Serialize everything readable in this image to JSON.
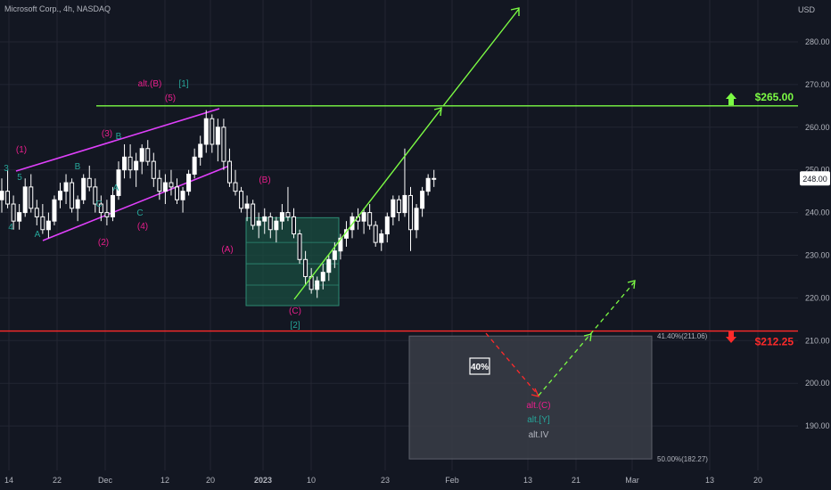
{
  "header": {
    "title": "Microsoft Corp., 4h, NASDAQ",
    "currency": "USD"
  },
  "colors": {
    "background": "#131722",
    "grid": "#232632",
    "text": "#b2b5be",
    "candle": "#ffffff",
    "channel": "#e040fb",
    "wave_pink": "#e91e8c",
    "wave_teal": "#26a69a",
    "target_green": "#7cfc44",
    "support_red": "#ff2a2a",
    "zone_teal": "#1a4d40",
    "alt_zone": "#3a3d47"
  },
  "chart_data": {
    "type": "candlestick",
    "title": "Microsoft Corp., 4h, NASDAQ",
    "ylabel": "USD",
    "y_axis_side": "right",
    "ylim": [
      182,
      298
    ],
    "y_ticks": [
      190,
      200,
      210,
      220,
      230,
      240,
      250,
      260,
      270,
      280
    ],
    "y_tick_labels": [
      "190.00",
      "200.00",
      "210.00",
      "220.00",
      "230.00",
      "240.00",
      "250.00",
      "260.00",
      "270.00",
      "280.00"
    ],
    "x_tick_labels": [
      "14",
      "22",
      "Dec",
      "12",
      "20",
      "2023",
      "10",
      "23",
      "Feb",
      "13",
      "21",
      "Mar",
      "13",
      "20"
    ],
    "grid": true,
    "last_price": 248.0,
    "last_price_label": "248.00",
    "ohlc": [
      [
        243,
        248,
        240,
        245
      ],
      [
        245,
        250,
        241,
        242
      ],
      [
        242,
        244,
        236,
        238
      ],
      [
        238,
        242,
        236,
        240
      ],
      [
        240,
        248,
        239,
        246
      ],
      [
        246,
        249,
        240,
        241
      ],
      [
        241,
        243,
        237,
        239
      ],
      [
        239,
        242,
        235,
        236
      ],
      [
        236,
        240,
        234,
        238
      ],
      [
        238,
        244,
        237,
        243
      ],
      [
        243,
        247,
        241,
        245
      ],
      [
        245,
        249,
        242,
        247
      ],
      [
        247,
        248,
        240,
        241
      ],
      [
        241,
        244,
        238,
        243
      ],
      [
        243,
        249,
        242,
        248
      ],
      [
        248,
        251,
        245,
        246
      ],
      [
        246,
        248,
        240,
        242
      ],
      [
        242,
        244,
        238,
        240
      ],
      [
        240,
        243,
        237,
        239
      ],
      [
        239,
        246,
        238,
        244
      ],
      [
        244,
        252,
        243,
        250
      ],
      [
        250,
        256,
        248,
        253
      ],
      [
        253,
        256,
        248,
        250
      ],
      [
        250,
        254,
        246,
        252
      ],
      [
        252,
        256,
        249,
        255
      ],
      [
        255,
        257,
        251,
        252
      ],
      [
        252,
        254,
        246,
        248
      ],
      [
        248,
        250,
        243,
        245
      ],
      [
        245,
        249,
        242,
        247
      ],
      [
        247,
        250,
        244,
        246
      ],
      [
        246,
        248,
        242,
        243
      ],
      [
        243,
        246,
        240,
        245
      ],
      [
        245,
        250,
        244,
        249
      ],
      [
        249,
        255,
        248,
        253
      ],
      [
        253,
        258,
        251,
        256
      ],
      [
        256,
        264,
        254,
        262
      ],
      [
        262,
        263,
        254,
        256
      ],
      [
        256,
        262,
        252,
        260
      ],
      [
        260,
        262,
        250,
        252
      ],
      [
        252,
        255,
        246,
        247
      ],
      [
        247,
        250,
        244,
        245
      ],
      [
        245,
        246,
        240,
        241
      ],
      [
        241,
        244,
        238,
        242
      ],
      [
        242,
        243,
        236,
        237
      ],
      [
        237,
        240,
        234,
        238
      ],
      [
        238,
        241,
        235,
        239
      ],
      [
        239,
        240,
        234,
        236
      ],
      [
        236,
        239,
        233,
        238
      ],
      [
        238,
        242,
        236,
        240
      ],
      [
        240,
        246,
        238,
        239
      ],
      [
        239,
        241,
        234,
        235
      ],
      [
        235,
        236,
        228,
        229
      ],
      [
        229,
        231,
        223,
        225
      ],
      [
        225,
        227,
        221,
        222
      ],
      [
        222,
        225,
        220,
        224
      ],
      [
        224,
        228,
        222,
        226
      ],
      [
        226,
        230,
        224,
        229
      ],
      [
        229,
        233,
        227,
        231
      ],
      [
        231,
        235,
        229,
        234
      ],
      [
        234,
        238,
        232,
        236
      ],
      [
        236,
        240,
        234,
        239
      ],
      [
        239,
        241,
        236,
        238
      ],
      [
        238,
        241,
        235,
        240
      ],
      [
        240,
        242,
        236,
        237
      ],
      [
        237,
        238,
        232,
        233
      ],
      [
        233,
        236,
        231,
        235
      ],
      [
        235,
        240,
        233,
        239
      ],
      [
        239,
        244,
        237,
        243
      ],
      [
        243,
        244,
        238,
        240
      ],
      [
        240,
        255,
        239,
        244
      ],
      [
        244,
        246,
        231,
        236
      ],
      [
        236,
        242,
        234,
        241
      ],
      [
        241,
        246,
        239,
        245
      ],
      [
        245,
        249,
        244,
        248
      ],
      [
        248,
        250,
        246,
        248
      ]
    ],
    "levels": [
      {
        "name": "resistance",
        "value": 265.0,
        "label": "$265.00",
        "color": "#7cfc44"
      },
      {
        "name": "support",
        "value": 212.25,
        "label": "$212.25",
        "color": "#ff2a2a"
      }
    ],
    "fib_labels": {
      "upper": "41.40%(211.06)",
      "lower": "50.00%(182.27)"
    },
    "alt_zone_percent_label": "40%",
    "wave_labels": {
      "w3_left": "3",
      "w4_left": "4",
      "w5_left": "5",
      "wA_left": "A",
      "wB_left": "B",
      "wC_left": "C",
      "w1_pink": "(1)",
      "w2_pink": "(2)",
      "w3_pink": "(3)",
      "w4_pink": "(4)",
      "w5_pink": "(5)",
      "wA_teal": "A",
      "wB_teal": "B",
      "wC_teal": "C",
      "alt_B": "alt.(B)",
      "bracket_1": "[1]",
      "wA_paren": "(A)",
      "wB_paren": "(B)",
      "wC_paren": "(C)",
      "bracket_2": "[2]",
      "alt_C": "alt.(C)",
      "alt_Y": "alt.[Y]",
      "alt_IV": "alt.IV"
    }
  }
}
